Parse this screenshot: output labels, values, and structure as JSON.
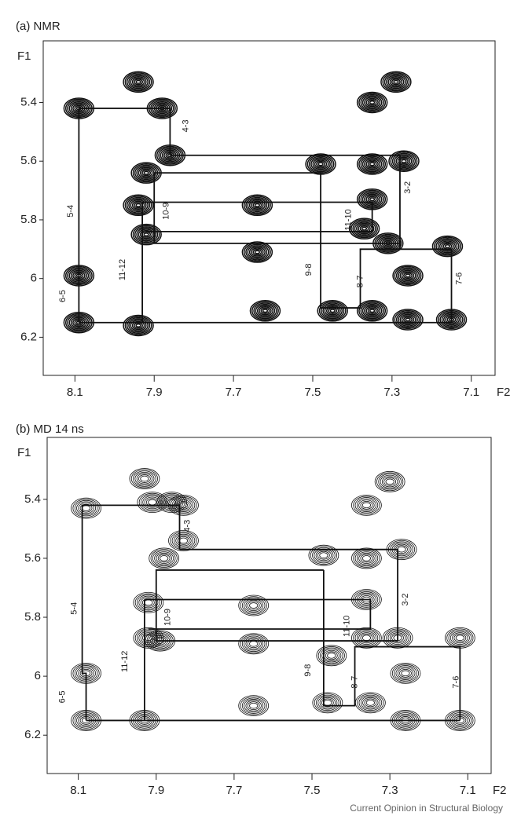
{
  "chart_data": [
    {
      "type": "contour",
      "title": "(a) NMR",
      "xlabel": "F2",
      "ylabel": "F1",
      "xlim": [
        8.18,
        7.04
      ],
      "ylim": [
        5.19,
        6.33
      ],
      "xticks": [
        8.1,
        7.9,
        7.7,
        7.5,
        7.3,
        7.1
      ],
      "yticks": [
        5.4,
        5.6,
        5.8,
        6.0,
        6.2
      ],
      "peaks": {
        "x": [
          8.09,
          7.94,
          7.88,
          7.86,
          7.92,
          7.94,
          7.92,
          8.09,
          8.09,
          7.94,
          7.64,
          7.64,
          7.62,
          7.48,
          7.35,
          7.27,
          7.35,
          7.29,
          7.35,
          7.37,
          7.31,
          7.16,
          7.15,
          7.26,
          7.26,
          7.45,
          7.35
        ],
        "y": [
          5.42,
          5.33,
          5.42,
          5.58,
          5.64,
          5.75,
          5.85,
          5.99,
          6.15,
          6.16,
          5.75,
          5.91,
          6.11,
          5.61,
          5.61,
          5.6,
          5.4,
          5.33,
          5.73,
          5.83,
          5.88,
          5.89,
          6.14,
          6.14,
          5.99,
          6.11,
          6.11
        ]
      },
      "walk": [
        {
          "x": [
            8.09,
            8.09,
            7.86,
            7.86
          ],
          "y": [
            6.15,
            5.42,
            5.42,
            5.58
          ]
        },
        {
          "x": [
            8.09,
            7.15
          ],
          "y": [
            6.15,
            6.15
          ]
        },
        {
          "x": [
            7.86,
            7.28,
            7.28
          ],
          "y": [
            5.58,
            5.58,
            5.9
          ]
        },
        {
          "x": [
            7.48,
            7.9,
            7.9,
            7.28
          ],
          "y": [
            5.64,
            5.64,
            5.88,
            5.88
          ]
        },
        {
          "x": [
            7.48,
            7.48,
            7.38,
            7.38,
            7.15,
            7.15
          ],
          "y": [
            5.64,
            6.1,
            6.1,
            5.9,
            5.9,
            6.15
          ]
        },
        {
          "x": [
            7.93,
            7.93
          ],
          "y": [
            5.74,
            6.15
          ]
        },
        {
          "x": [
            7.93,
            7.35,
            7.35,
            7.92
          ],
          "y": [
            5.74,
            5.74,
            5.84,
            5.84
          ]
        }
      ],
      "annotations": [
        {
          "text": "5-4",
          "x": 8.11,
          "y": 5.77
        },
        {
          "text": "4-3",
          "x": 7.82,
          "y": 5.48
        },
        {
          "text": "3-2",
          "x": 7.26,
          "y": 5.69
        },
        {
          "text": "10-9",
          "x": 7.87,
          "y": 5.77
        },
        {
          "text": "11-10",
          "x": 7.41,
          "y": 5.8
        },
        {
          "text": "11-12",
          "x": 7.98,
          "y": 5.97
        },
        {
          "text": "9-8",
          "x": 7.51,
          "y": 5.97
        },
        {
          "text": "8-7",
          "x": 7.38,
          "y": 6.01
        },
        {
          "text": "7-6",
          "x": 7.13,
          "y": 6.0
        },
        {
          "text": "6-5",
          "x": 8.13,
          "y": 6.06
        }
      ]
    },
    {
      "type": "contour",
      "title": "(b) MD 14 ns",
      "xlabel": "F2",
      "ylabel": "F1",
      "xlim": [
        8.18,
        7.04
      ],
      "ylim": [
        5.19,
        6.33
      ],
      "xticks": [
        8.1,
        7.9,
        7.7,
        7.5,
        7.3,
        7.1
      ],
      "yticks": [
        5.4,
        5.6,
        5.8,
        6.0,
        6.2
      ],
      "peaks": {
        "x": [
          8.08,
          7.93,
          7.91,
          7.86,
          7.83,
          7.83,
          7.88,
          7.92,
          7.92,
          7.89,
          8.08,
          8.08,
          7.93,
          7.65,
          7.65,
          7.65,
          7.47,
          7.36,
          7.27,
          7.36,
          7.3,
          7.36,
          7.36,
          7.45,
          7.28,
          7.12,
          7.12,
          7.26,
          7.26,
          7.46,
          7.35
        ],
        "y": [
          5.43,
          5.33,
          5.41,
          5.41,
          5.42,
          5.54,
          5.6,
          5.75,
          5.87,
          5.88,
          5.99,
          6.15,
          6.15,
          5.76,
          5.89,
          6.1,
          5.59,
          5.6,
          5.57,
          5.42,
          5.34,
          5.74,
          5.87,
          5.93,
          5.87,
          5.87,
          6.15,
          6.15,
          5.99,
          6.09,
          6.09
        ]
      },
      "walk": [
        {
          "x": [
            8.08,
            8.08,
            8.09,
            8.09,
            7.84,
            7.84
          ],
          "y": [
            6.15,
            5.99,
            5.99,
            5.42,
            5.42,
            5.57
          ]
        },
        {
          "x": [
            8.08,
            7.12
          ],
          "y": [
            6.15,
            6.15
          ]
        },
        {
          "x": [
            7.84,
            7.28,
            7.28
          ],
          "y": [
            5.57,
            5.57,
            5.88
          ]
        },
        {
          "x": [
            7.47,
            7.9,
            7.9,
            7.28
          ],
          "y": [
            5.64,
            5.64,
            5.88,
            5.88
          ]
        },
        {
          "x": [
            7.47,
            7.47,
            7.39,
            7.39,
            7.12,
            7.12
          ],
          "y": [
            5.64,
            6.1,
            6.1,
            5.9,
            5.9,
            6.15
          ]
        },
        {
          "x": [
            7.93,
            7.93
          ],
          "y": [
            5.74,
            6.15
          ]
        },
        {
          "x": [
            7.93,
            7.35,
            7.35,
            7.92
          ],
          "y": [
            5.74,
            5.74,
            5.84,
            5.84
          ]
        }
      ],
      "annotations": [
        {
          "text": "5-4",
          "x": 8.11,
          "y": 5.77
        },
        {
          "text": "4-3",
          "x": 7.82,
          "y": 5.49
        },
        {
          "text": "3-2",
          "x": 7.26,
          "y": 5.74
        },
        {
          "text": "10-9",
          "x": 7.87,
          "y": 5.8
        },
        {
          "text": "11-10",
          "x": 7.41,
          "y": 5.83
        },
        {
          "text": "11-12",
          "x": 7.98,
          "y": 5.95
        },
        {
          "text": "9-8",
          "x": 7.51,
          "y": 5.98
        },
        {
          "text": "8-7",
          "x": 7.39,
          "y": 6.02
        },
        {
          "text": "7-6",
          "x": 7.13,
          "y": 6.02
        },
        {
          "text": "6-5",
          "x": 8.14,
          "y": 6.07
        }
      ]
    }
  ],
  "source": "Current Opinion in Structural Biology"
}
